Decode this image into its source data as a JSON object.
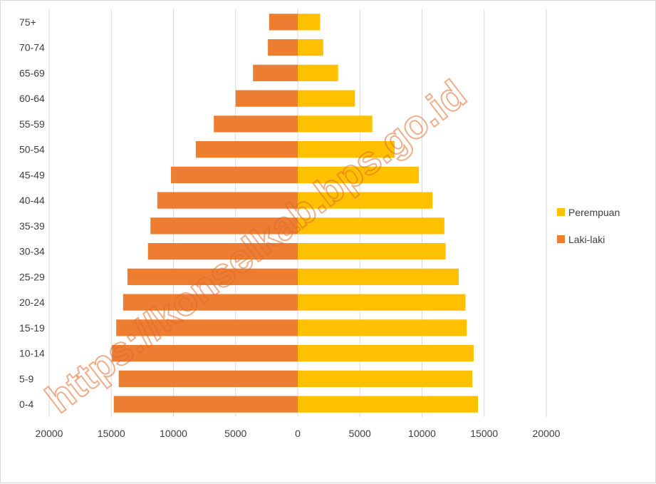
{
  "chart_data": {
    "type": "bar",
    "orientation": "horizontal",
    "layout": "population-pyramid",
    "title": "",
    "xlabel": "",
    "ylabel": "",
    "xlim": [
      -20000,
      20000
    ],
    "x_ticks": [
      -20000,
      -15000,
      -10000,
      -5000,
      0,
      5000,
      10000,
      15000,
      20000
    ],
    "x_tick_labels": [
      "20000",
      "15000",
      "10000",
      "5000",
      "0",
      "5000",
      "10000",
      "15000",
      "20000"
    ],
    "grid": "vertical",
    "legend_position": "right",
    "categories": [
      "0-4",
      "5-9",
      "10-14",
      "15-19",
      "20-24",
      "25-29",
      "30-34",
      "35-39",
      "40-44",
      "45-49",
      "50-54",
      "55-59",
      "60-64",
      "65-69",
      "70-74",
      "75+"
    ],
    "series": [
      {
        "name": "Perempuan",
        "side": "right",
        "color": "#ffc000",
        "values": [
          14500,
          14050,
          14150,
          13600,
          13500,
          12950,
          11900,
          11800,
          10850,
          9750,
          7800,
          6000,
          4600,
          3250,
          2050,
          1800
        ]
      },
      {
        "name": "Laki-laki",
        "side": "left",
        "color": "#ed7d31",
        "values": [
          14800,
          14400,
          14950,
          14600,
          14050,
          13700,
          12050,
          11850,
          11300,
          10200,
          8200,
          6750,
          5000,
          3600,
          2400,
          2300
        ]
      }
    ],
    "watermark": "https://konselkab.bps.go.id",
    "colors": {
      "gridline": "#d9d9d9",
      "text": "#404040",
      "watermark": "#e06a2c"
    }
  }
}
